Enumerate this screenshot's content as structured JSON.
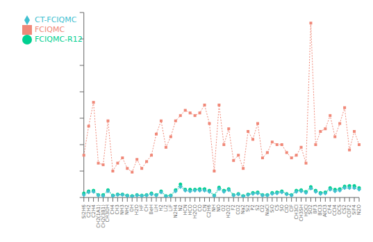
{
  "chart_data": {
    "type": "line",
    "categories": [
      "Si2H6",
      "C2H2",
      "C2H4",
      "CH2(1A1)",
      "CH2(3B1)",
      "CH3OH",
      "CH4",
      "CH3",
      "NH3",
      "NH2",
      "OH",
      "H2O",
      "HF",
      "CH",
      "BeH",
      "LiH",
      "H2",
      "Li2",
      "LiF",
      "N2H4",
      "N2",
      "HCN",
      "HCO",
      "H2CO",
      "CO",
      "CN",
      "C2H6",
      "NH",
      "NO",
      "O2",
      "H2O2",
      "F2",
      "CO2",
      "Na2",
      "Si2",
      "P2",
      "S2",
      "Cl2",
      "NaCl",
      "SiO",
      "CS",
      "SO",
      "ClO",
      "ClF",
      "CH3Cl",
      "CH3SH",
      "HOCl",
      "SO2",
      "BF3",
      "BCl3",
      "AlCl3",
      "CF4",
      "CCl4",
      "OCS",
      "CS2",
      "COF2",
      "SiF4",
      "N2O"
    ],
    "series": [
      {
        "name": "FCIQMC",
        "color": "#f08878",
        "marker": "square",
        "line_style": "dotted",
        "values": [
          8.0,
          13.5,
          18.0,
          6.5,
          6.2,
          14.5,
          5.0,
          6.5,
          7.5,
          5.5,
          4.8,
          7.2,
          5.5,
          6.8,
          8.0,
          12.0,
          14.5,
          9.5,
          11.5,
          14.5,
          15.5,
          16.5,
          16.0,
          15.5,
          16.0,
          17.5,
          14.0,
          5.0,
          17.5,
          10.0,
          13.0,
          7.0,
          8.0,
          5.5,
          12.5,
          11.0,
          14.0,
          7.5,
          8.5,
          10.5,
          10.0,
          10.0,
          8.5,
          7.5,
          8.0,
          9.5,
          6.5,
          33.0,
          10.0,
          12.5,
          13.0,
          15.5,
          11.5,
          14.0,
          17.0,
          9.0,
          12.5,
          10.0
        ]
      },
      {
        "name": "FCIQMC-R12",
        "color": "#00d090",
        "marker": "circle",
        "line_style": "dotted",
        "values": [
          0.8,
          1.2,
          1.3,
          0.5,
          0.5,
          1.4,
          0.4,
          0.6,
          0.6,
          0.4,
          0.3,
          0.5,
          0.4,
          0.5,
          0.8,
          0.5,
          1.2,
          0.3,
          0.4,
          1.4,
          2.5,
          1.5,
          1.5,
          1.5,
          1.6,
          1.6,
          1.3,
          0.4,
          1.9,
          1.3,
          1.6,
          0.5,
          0.7,
          0.3,
          0.6,
          0.9,
          1.0,
          0.5,
          0.5,
          0.9,
          1.0,
          1.2,
          0.7,
          0.5,
          1.3,
          1.4,
          1.1,
          2.0,
          1.3,
          0.9,
          1.0,
          1.8,
          1.5,
          1.6,
          2.1,
          2.2,
          2.2,
          1.8
        ]
      },
      {
        "name": "CT-FCIQMC",
        "color": "#40c0d0",
        "marker": "diamond",
        "line_style": "dotted",
        "values": [
          0.5,
          1.0,
          1.1,
          0.4,
          0.3,
          1.2,
          0.3,
          0.5,
          0.5,
          0.3,
          0.2,
          0.4,
          0.3,
          0.4,
          0.6,
          0.4,
          1.0,
          0.2,
          0.3,
          1.2,
          2.0,
          1.3,
          1.2,
          1.3,
          1.3,
          1.3,
          1.1,
          0.3,
          1.6,
          1.1,
          1.4,
          0.4,
          0.6,
          0.2,
          0.5,
          0.7,
          0.8,
          0.4,
          0.4,
          0.7,
          0.8,
          1.0,
          0.6,
          0.4,
          1.1,
          1.2,
          0.9,
          1.7,
          1.1,
          0.7,
          0.8,
          1.5,
          1.2,
          1.3,
          1.8,
          1.8,
          1.8,
          1.5
        ]
      }
    ],
    "ylim": [
      0,
      35
    ],
    "yticks": [
      0,
      5,
      10,
      15,
      20,
      25,
      30,
      35
    ],
    "grid": false,
    "legend": "upper left",
    "tick_labels": "x"
  }
}
